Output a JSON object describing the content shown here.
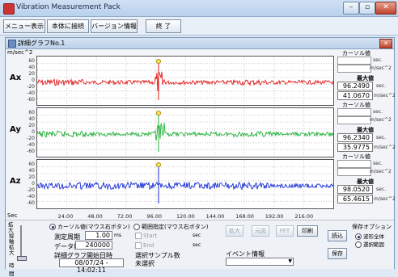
{
  "window": {
    "title": "Vibration Measurement Pack",
    "min": "–",
    "max": "▫",
    "close": "✕"
  },
  "toolbar": {
    "menu": "メニュー表示",
    "data_view": "本体に接続",
    "version": "バージョン情報",
    "exit": "終 了"
  },
  "subwindow": {
    "title": "詳細グラフNo.1",
    "close": "✕"
  },
  "graph": {
    "y_unit": "m/sec^2",
    "x_unit": "Sec",
    "y_ticks": [
      "60",
      "40",
      "20",
      "0",
      "-20",
      "-40",
      "-60"
    ],
    "x_ticks": [
      "24.00",
      "48.00",
      "72.00",
      "96.00",
      "120.00",
      "144.00",
      "168.00",
      "192.00",
      "216.00"
    ],
    "channels": [
      {
        "name": "Ax",
        "color": "#e11b1b"
      },
      {
        "name": "Ay",
        "color": "#22b13a"
      },
      {
        "name": "Az",
        "color": "#1a2fd6"
      }
    ]
  },
  "side": {
    "cursor_label": "カーソル値",
    "sec": "sec.",
    "unit": "m/sec^2",
    "max_label": "最大値",
    "values": [
      {
        "v1": "96.2490",
        "v2": "41.0670"
      },
      {
        "v1": "96.2340",
        "v2": "35.9775"
      },
      {
        "v1": "98.0520",
        "v2": "65.4615"
      }
    ]
  },
  "bottom": {
    "zoom_label": "拡大",
    "axis_label": "縦軸拡大",
    "time_label": "時間",
    "radio_cursor": "カーソル値(マウス右ボタン)",
    "radio_range": "範囲指定(マウス右ボタン)",
    "period_label": "測定周期",
    "period_value": "1.00",
    "period_unit": "ms",
    "count_label": "データ数",
    "count_value": "240000",
    "start_label": "詳細グラフ開始日時",
    "start_value": "08/07/24 - 14:02:11",
    "chk_start": "Start",
    "chk_end": "End",
    "sec": "sec",
    "sample_label": "選択サンプル数",
    "sample_value": "未選択",
    "btn_zoom": "拡大",
    "btn_orig": "元図",
    "btn_fft": "FFT",
    "btn_print": "印刷",
    "event_label": "イベント情報",
    "btn_load": "読込",
    "btn_save": "保存",
    "save_opt_label": "保存オプション",
    "opt_all": "波形全体",
    "opt_range": "選択範囲"
  }
}
